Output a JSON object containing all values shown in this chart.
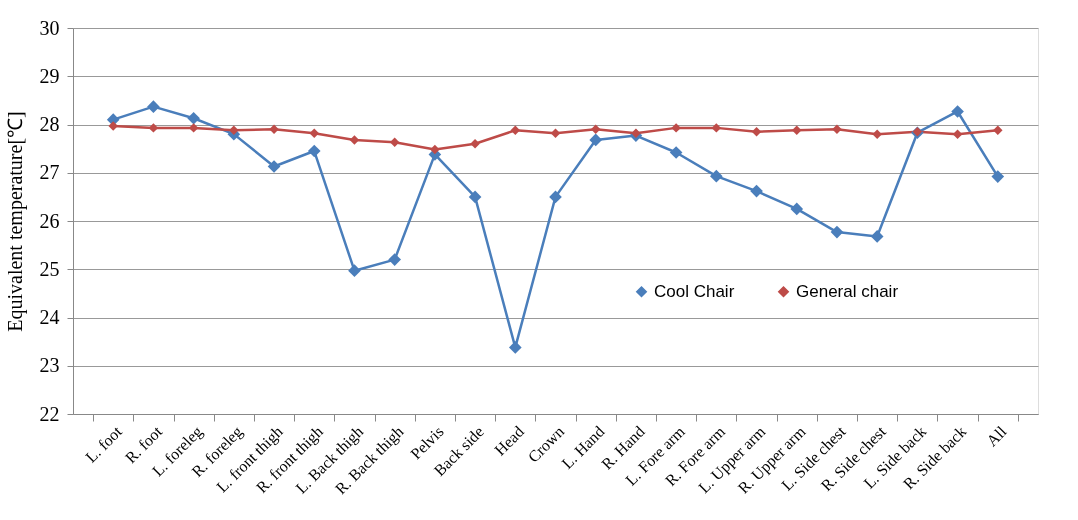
{
  "chart_data": {
    "type": "line",
    "ylabel": "Equivalent temperature[℃]",
    "categories": [
      "L. foot",
      "R. foot",
      "L. foreleg",
      "R. foreleg",
      "L. front thigh",
      "R. front thigh",
      "L. Back thigh",
      "R. Back thigh",
      "Pelvis",
      "Back side",
      "Head",
      "Crown",
      "L. Hand",
      "R. Hand",
      "L. Fore arm",
      "R. Fore arm",
      "L. Upper arm",
      "R. Upper arm",
      "L. Side chest",
      "R. Side chest",
      "L. Side back",
      "R. Side back",
      "All"
    ],
    "series": [
      {
        "name": "Cool Chair",
        "color": "#4a7ebb",
        "values": [
          28.1,
          28.37,
          28.13,
          27.8,
          27.13,
          27.45,
          24.97,
          25.2,
          27.38,
          26.5,
          23.38,
          26.5,
          27.68,
          27.77,
          27.42,
          26.93,
          26.62,
          26.25,
          25.77,
          25.68,
          27.83,
          28.27,
          26.92
        ]
      },
      {
        "name": "General chair",
        "color": "#be4b48",
        "values": [
          27.97,
          27.93,
          27.93,
          27.88,
          27.9,
          27.82,
          27.68,
          27.63,
          27.48,
          27.6,
          27.88,
          27.82,
          27.9,
          27.82,
          27.93,
          27.93,
          27.85,
          27.88,
          27.9,
          27.8,
          27.85,
          27.8,
          27.88
        ]
      }
    ],
    "ylim": [
      22,
      30
    ],
    "yticks": [
      22,
      23,
      24,
      25,
      26,
      27,
      28,
      29,
      30
    ],
    "grid": "y",
    "legend": "bottom right",
    "marker": "diamond",
    "line_style": "solid"
  }
}
